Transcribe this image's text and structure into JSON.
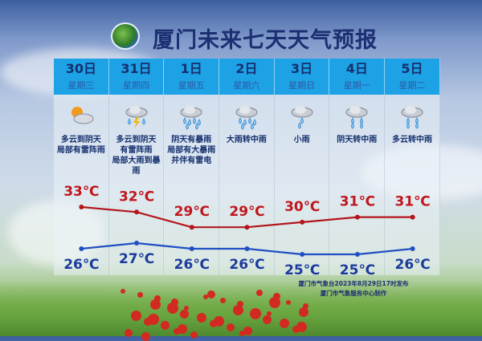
{
  "title": "厦门未来七天天气预报",
  "colors": {
    "header": "#1ea2e6",
    "high_line": "#b3151b",
    "low_line": "#1f4fc2",
    "high_text": "#c0161c",
    "low_text": "#1a3b9c"
  },
  "days": [
    {
      "date": "30日",
      "weekday": "星期三",
      "icon": "partly-cloudy-icon",
      "desc": [
        "多云到阴天",
        "局部有雷阵雨"
      ],
      "high": "33℃",
      "low": "26℃"
    },
    {
      "date": "31日",
      "weekday": "星期四",
      "icon": "thunderstorm-icon",
      "desc": [
        "多云到阴天",
        "有雷阵雨",
        "局部大雨到暴雨"
      ],
      "high": "32℃",
      "low": "27℃"
    },
    {
      "date": "1日",
      "weekday": "星期五",
      "icon": "heavy-rain-icon",
      "desc": [
        "阴天有暴雨",
        "局部有大暴雨",
        "并伴有雷电"
      ],
      "high": "29℃",
      "low": "26℃"
    },
    {
      "date": "2日",
      "weekday": "星期六",
      "icon": "heavy-rain-icon",
      "desc": [
        "大雨转中雨"
      ],
      "high": "29℃",
      "low": "26℃"
    },
    {
      "date": "3日",
      "weekday": "星期日",
      "icon": "light-rain-icon",
      "desc": [
        "小雨"
      ],
      "high": "30℃",
      "low": "25℃"
    },
    {
      "date": "4日",
      "weekday": "星期一",
      "icon": "moderate-rain-icon",
      "desc": [
        "阴天转中雨"
      ],
      "high": "31℃",
      "low": "25℃"
    },
    {
      "date": "5日",
      "weekday": "星期二",
      "icon": "moderate-rain-icon",
      "desc": [
        "多云转中雨"
      ],
      "high": "31℃",
      "low": "26℃"
    }
  ],
  "chart_data": {
    "type": "line",
    "categories": [
      "30日",
      "31日",
      "1日",
      "2日",
      "3日",
      "4日",
      "5日"
    ],
    "series": [
      {
        "values": [
          33,
          32,
          29,
          29,
          30,
          31,
          31
        ]
      },
      {
        "values": [
          26,
          27,
          26,
          26,
          25,
          25,
          26
        ]
      }
    ]
  },
  "footer": {
    "line1": "厦门市气象台2023年8月29日17时发布",
    "line2": "厦门市气象服务中心制作"
  }
}
